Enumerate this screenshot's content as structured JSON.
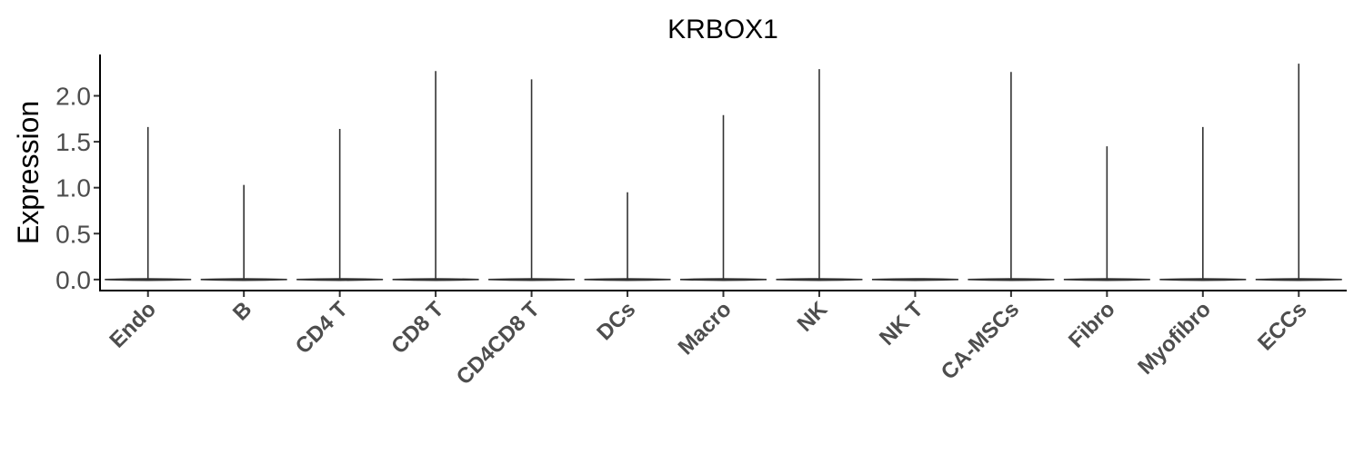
{
  "chart_data": {
    "type": "violin",
    "title": "KRBOX1",
    "xlabel": "",
    "ylabel": "Expression",
    "ylim": [
      -0.12,
      2.45
    ],
    "yticks": [
      "0.0",
      "0.5",
      "1.0",
      "1.5",
      "2.0"
    ],
    "yticks_values": [
      0.0,
      0.5,
      1.0,
      1.5,
      2.0
    ],
    "categories": [
      "Endo",
      "B",
      "CD4 T",
      "CD8 T",
      "CD4CD8 T",
      "DCs",
      "Macro",
      "NK",
      "NK T",
      "CA-MSCs",
      "Fibro",
      "Myofibro",
      "ECCs"
    ],
    "max_values": [
      1.66,
      1.03,
      1.64,
      2.27,
      2.18,
      0.95,
      1.79,
      2.29,
      0.0,
      2.26,
      1.45,
      1.66,
      2.35
    ],
    "grid": false,
    "legend": "none"
  }
}
